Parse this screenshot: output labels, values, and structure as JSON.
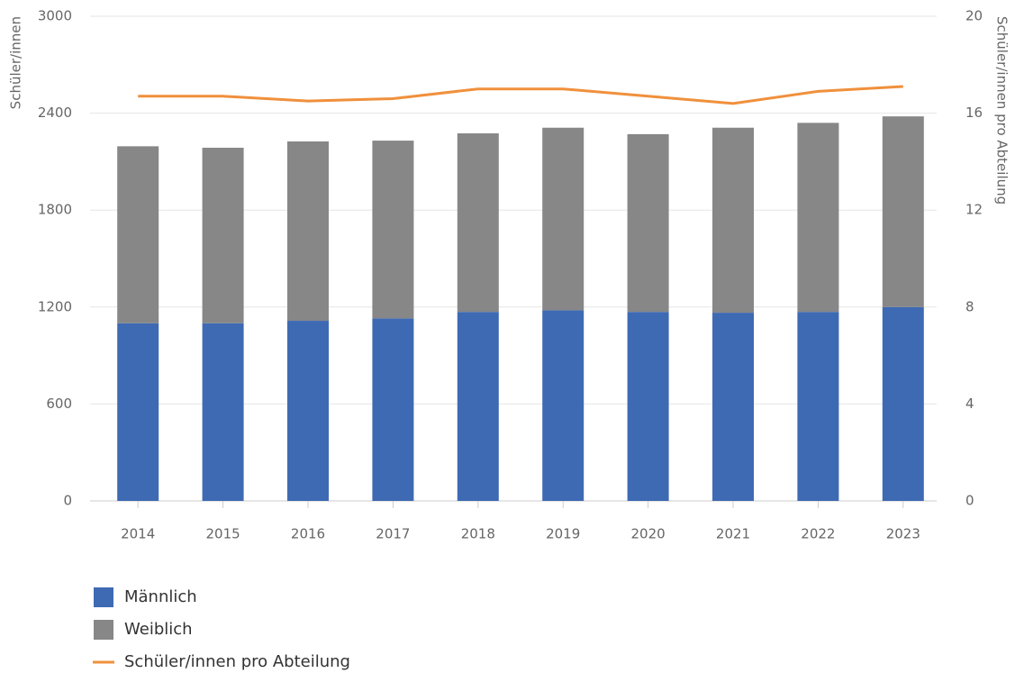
{
  "chart_data": {
    "type": "bar",
    "stacked": true,
    "categories": [
      "2014",
      "2015",
      "2016",
      "2017",
      "2018",
      "2019",
      "2020",
      "2021",
      "2022",
      "2023"
    ],
    "y_label": "Schüler/innen",
    "y2_label": "Schüler/innen pro Abteilung",
    "series": [
      {
        "name": "Männlich",
        "type": "bar",
        "color": "#3e6ab3",
        "values": [
          1100,
          1100,
          1115,
          1130,
          1170,
          1180,
          1170,
          1165,
          1170,
          1200
        ]
      },
      {
        "name": "Weiblich",
        "type": "bar",
        "color": "#878787",
        "values": [
          1095,
          1086,
          1110,
          1100,
          1105,
          1130,
          1100,
          1145,
          1170,
          1180
        ]
      },
      {
        "name": "Schüler/innen pro Abteilung",
        "type": "line",
        "axis": "y2",
        "color": "#f0903c",
        "values": [
          16.7,
          16.7,
          16.5,
          16.6,
          17.0,
          17.0,
          16.7,
          16.4,
          16.9,
          17.1
        ]
      }
    ],
    "ylim": [
      0,
      3000
    ],
    "yticks": [
      0,
      600,
      1200,
      1800,
      2400,
      3000
    ],
    "y2lim": [
      0,
      20
    ],
    "y2ticks": [
      0,
      4,
      8,
      12,
      16,
      20
    ],
    "grid": true
  }
}
